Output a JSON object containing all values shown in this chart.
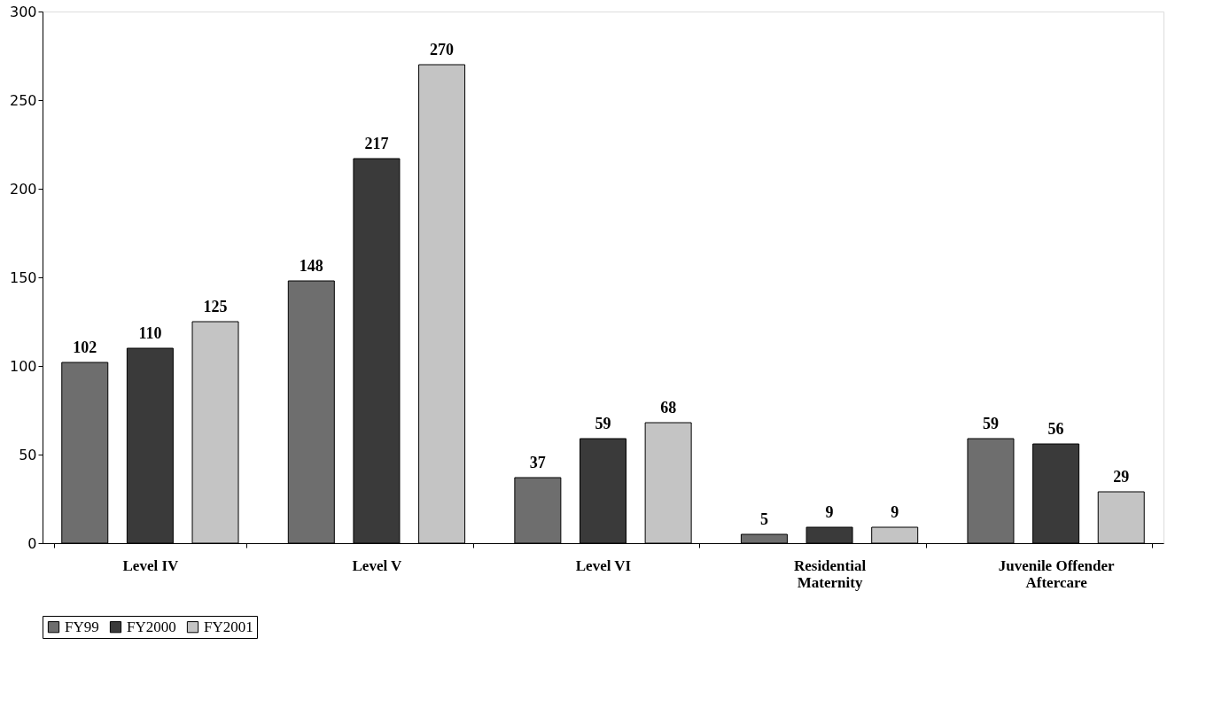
{
  "chart_data": {
    "type": "bar",
    "categories": [
      "Level IV",
      "Level V",
      "Level VI",
      "Residential\nMaternity",
      "Juvenile Offender\nAftercare"
    ],
    "series": [
      {
        "name": "FY99",
        "color": "#6e6e6e",
        "values": [
          102,
          148,
          37,
          5,
          59
        ]
      },
      {
        "name": "FY2000",
        "color": "#3a3a3a",
        "values": [
          110,
          217,
          59,
          9,
          56
        ]
      },
      {
        "name": "FY2001",
        "color": "#c4c4c4",
        "values": [
          125,
          270,
          68,
          9,
          29
        ]
      }
    ],
    "ylim": [
      0,
      300
    ],
    "yticks": [
      0,
      50,
      100,
      150,
      200,
      250,
      300
    ],
    "grid": false,
    "legend": "bottom",
    "data_labels": true
  }
}
